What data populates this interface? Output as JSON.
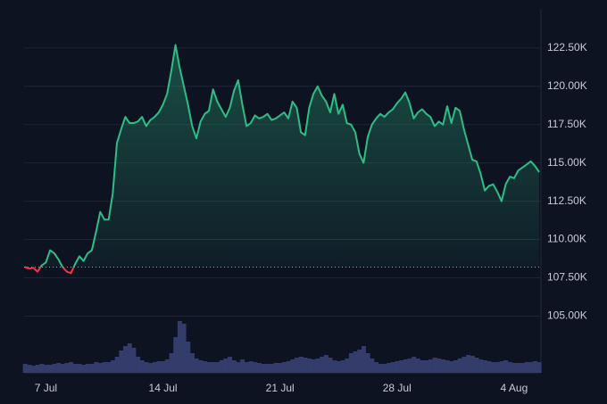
{
  "chart_data": {
    "type": "line",
    "categories": [
      null,
      null,
      null,
      null,
      null,
      "7 Jul",
      null,
      null,
      null,
      null,
      null,
      null,
      null,
      null,
      null,
      null,
      null,
      null,
      null,
      null,
      null,
      null,
      null,
      null,
      null,
      null,
      null,
      null,
      null,
      null,
      null,
      null,
      null,
      "14 Jul",
      null,
      null,
      null,
      null,
      null,
      null,
      null,
      null,
      null,
      null,
      null,
      null,
      null,
      null,
      null,
      null,
      null,
      null,
      null,
      null,
      null,
      null,
      null,
      null,
      null,
      null,
      null,
      "21 Jul",
      null,
      null,
      null,
      null,
      null,
      null,
      null,
      null,
      null,
      null,
      null,
      null,
      null,
      null,
      null,
      null,
      null,
      null,
      null,
      null,
      null,
      null,
      null,
      null,
      null,
      null,
      null,
      "28 Jul",
      null,
      null,
      null,
      null,
      null,
      null,
      null,
      null,
      null,
      null,
      null,
      null,
      null,
      null,
      null,
      null,
      null,
      null,
      null,
      null,
      null,
      null,
      null,
      null,
      null,
      null,
      null,
      "4 Aug",
      null,
      null,
      null,
      null,
      null,
      null
    ],
    "values": [
      108200,
      108100,
      108150,
      107900,
      108300,
      108500,
      109300,
      109100,
      108700,
      108200,
      107900,
      107800,
      108400,
      108900,
      108600,
      109100,
      109300,
      110500,
      111800,
      111300,
      111300,
      113000,
      116300,
      117200,
      118000,
      117600,
      117600,
      117700,
      118000,
      117400,
      117800,
      118000,
      118300,
      118800,
      119500,
      121000,
      122700,
      121200,
      120000,
      118800,
      117400,
      116600,
      117700,
      118200,
      118400,
      119800,
      119000,
      118500,
      118000,
      118600,
      119700,
      120400,
      118800,
      117400,
      117600,
      118100,
      117900,
      118000,
      118200,
      117800,
      117900,
      118100,
      118300,
      117900,
      119000,
      118600,
      117000,
      116800,
      118600,
      119500,
      120000,
      119400,
      119000,
      118300,
      119500,
      118200,
      118800,
      117600,
      117500,
      117000,
      115600,
      115000,
      116700,
      117500,
      117900,
      118200,
      118000,
      118300,
      118500,
      118900,
      119200,
      119600,
      118900,
      117900,
      118300,
      118500,
      118200,
      118000,
      117400,
      117700,
      117500,
      118700,
      117600,
      118600,
      118400,
      117200,
      116200,
      115200,
      115100,
      114300,
      113200,
      113500,
      113600,
      113100,
      112500,
      113600,
      114100,
      114000,
      114500,
      114700,
      114900,
      115100,
      114800,
      114400
    ],
    "volume": [
      10,
      9,
      8,
      9,
      10,
      9,
      9,
      10,
      11,
      10,
      11,
      12,
      10,
      10,
      9,
      10,
      10,
      12,
      11,
      12,
      12,
      14,
      18,
      25,
      30,
      33,
      28,
      18,
      14,
      12,
      11,
      12,
      13,
      13,
      15,
      22,
      40,
      58,
      55,
      35,
      22,
      16,
      14,
      13,
      12,
      12,
      12,
      14,
      16,
      18,
      14,
      12,
      15,
      12,
      13,
      12,
      11,
      10,
      10,
      10,
      11,
      11,
      12,
      13,
      15,
      17,
      18,
      17,
      16,
      15,
      16,
      18,
      20,
      17,
      14,
      13,
      14,
      16,
      22,
      24,
      26,
      30,
      22,
      16,
      12,
      10,
      10,
      11,
      12,
      13,
      14,
      15,
      16,
      18,
      16,
      14,
      14,
      15,
      17,
      16,
      15,
      14,
      13,
      14,
      16,
      18,
      20,
      19,
      17,
      15,
      14,
      13,
      12,
      12,
      13,
      14,
      12,
      11,
      11,
      11,
      12,
      12,
      13,
      12
    ],
    "volume_ylim": [
      0,
      60
    ],
    "baseline": 108200,
    "ylim": [
      101300,
      125050
    ],
    "yticks": [
      {
        "value": 105000,
        "label": "105.00K"
      },
      {
        "value": 107500,
        "label": "107.50K"
      },
      {
        "value": 110000,
        "label": "110.00K"
      },
      {
        "value": 112500,
        "label": "112.50K"
      },
      {
        "value": 115000,
        "label": "115.00K"
      },
      {
        "value": 117500,
        "label": "117.50K"
      },
      {
        "value": 120000,
        "label": "120.00K"
      },
      {
        "value": 122500,
        "label": "122.50K"
      }
    ],
    "grid": true,
    "up_color": "#2ebd85",
    "down_color": "#f23645",
    "volume_color": "#343c6b"
  }
}
